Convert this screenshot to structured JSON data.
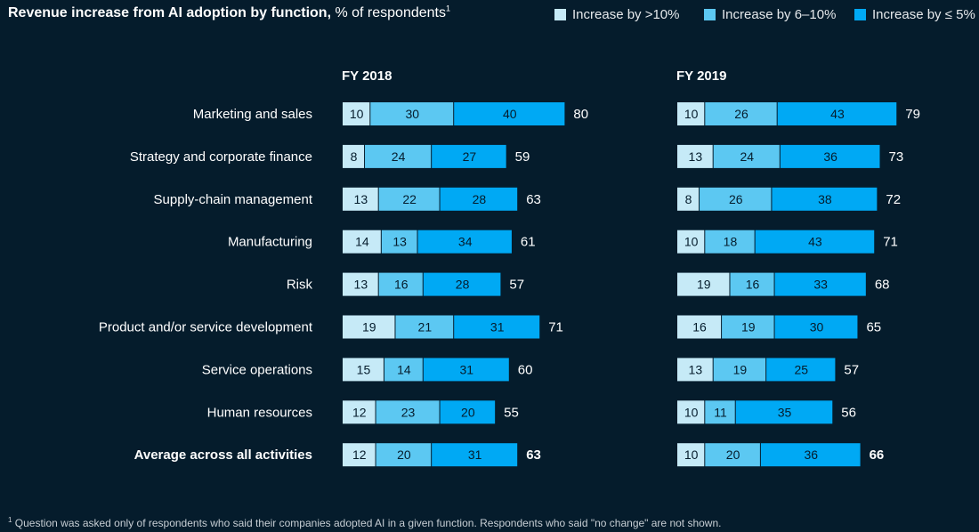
{
  "title": {
    "bold": "Revenue increase from AI adoption by function,",
    "rest": " % of respondents",
    "sup": "1"
  },
  "legend": [
    {
      "label": "Increase by >10%",
      "color": "#c6eaf7"
    },
    {
      "label": "Increase by 6–10%",
      "color": "#5cc8f2"
    },
    {
      "label": "Increase by ≤ 5%",
      "color": "#00a9f4"
    }
  ],
  "footnote": {
    "sup": "1",
    "text": " Question was asked only of respondents who said their companies adopted AI in a given function. Respondents who said \"no change\" are not shown."
  },
  "chart_data": [
    {
      "type": "bar",
      "stacked": true,
      "orientation": "horizontal",
      "title": "FY 2018",
      "categories": [
        "Marketing and sales",
        "Strategy and corporate finance",
        "Supply-chain management",
        "Manufacturing",
        "Risk",
        "Product and/or service development",
        "Service operations",
        "Human resources",
        "Average across all activities"
      ],
      "series": [
        {
          "name": "Increase by >10%",
          "values": [
            10,
            8,
            13,
            14,
            13,
            19,
            15,
            12,
            12
          ]
        },
        {
          "name": "Increase by 6–10%",
          "values": [
            30,
            24,
            22,
            13,
            16,
            21,
            14,
            23,
            20
          ]
        },
        {
          "name": "Increase by ≤ 5%",
          "values": [
            40,
            27,
            28,
            34,
            28,
            31,
            31,
            20,
            31
          ]
        }
      ],
      "totals": [
        80,
        59,
        63,
        61,
        57,
        71,
        60,
        55,
        63
      ]
    },
    {
      "type": "bar",
      "stacked": true,
      "orientation": "horizontal",
      "title": "FY 2019",
      "categories": [
        "Marketing and sales",
        "Strategy and corporate finance",
        "Supply-chain management",
        "Manufacturing",
        "Risk",
        "Product and/or service development",
        "Service operations",
        "Human resources",
        "Average across all activities"
      ],
      "series": [
        {
          "name": "Increase by >10%",
          "values": [
            10,
            13,
            8,
            10,
            19,
            16,
            13,
            10,
            10
          ]
        },
        {
          "name": "Increase by 6–10%",
          "values": [
            26,
            24,
            26,
            18,
            16,
            19,
            19,
            11,
            20
          ]
        },
        {
          "name": "Increase by ≤ 5%",
          "values": [
            43,
            36,
            38,
            43,
            33,
            30,
            25,
            35,
            36
          ]
        }
      ],
      "totals": [
        79,
        73,
        72,
        71,
        68,
        65,
        57,
        56,
        66
      ]
    }
  ]
}
